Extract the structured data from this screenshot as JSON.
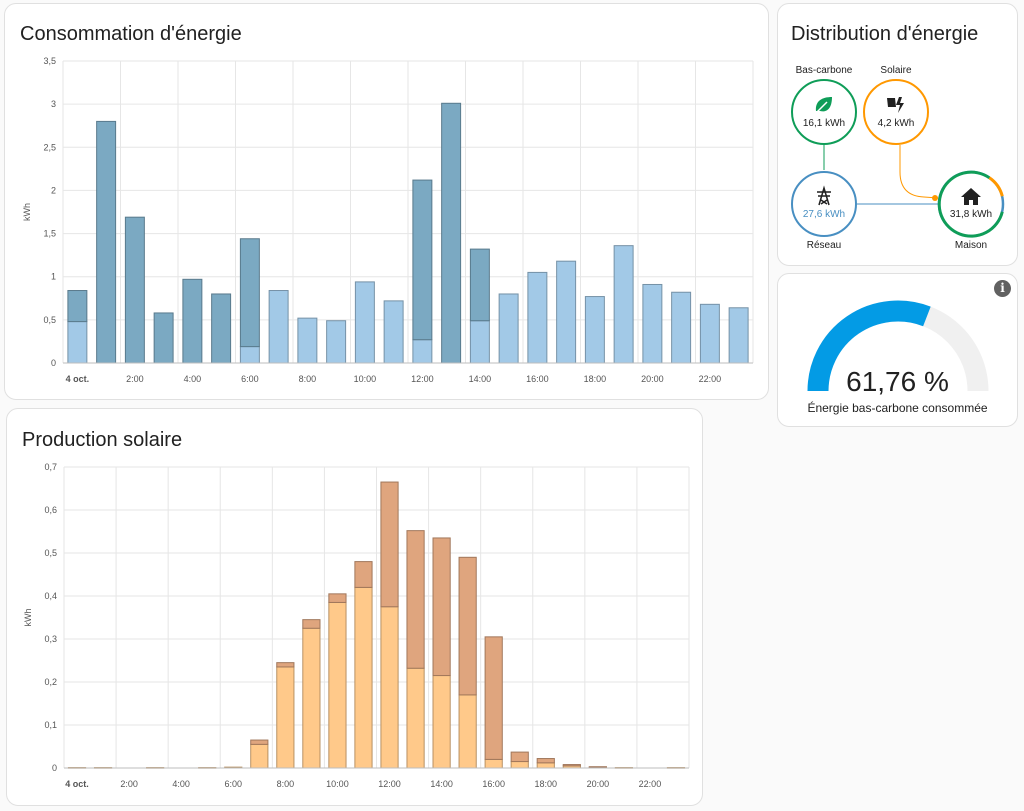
{
  "consumption": {
    "title": "Consommation d'énergie",
    "chart_data": {
      "type": "bar",
      "title": "Consommation d'énergie",
      "ylabel": "kWh",
      "ylim": [
        0,
        3.5
      ],
      "yticks": [
        "0",
        "0,5",
        "1",
        "1,5",
        "2",
        "2,5",
        "3",
        "3,5"
      ],
      "xticks": [
        "4 oct.",
        "2:00",
        "4:00",
        "6:00",
        "8:00",
        "10:00",
        "12:00",
        "14:00",
        "16:00",
        "18:00",
        "20:00",
        "22:00"
      ],
      "hours": [
        0,
        1,
        2,
        3,
        4,
        5,
        6,
        7,
        8,
        9,
        10,
        11,
        12,
        13,
        14,
        15,
        16,
        17,
        18,
        19,
        20,
        21,
        22,
        23
      ],
      "stacked": true,
      "series": [
        {
          "color": "#a2c9e7",
          "values": [
            0.48,
            0,
            0,
            0,
            0,
            0,
            0.19,
            0.84,
            0.52,
            0.49,
            0.94,
            0.72,
            0.27,
            0,
            0.49,
            0.8,
            1.05,
            1.18,
            0.77,
            1.36,
            0.91,
            0.82,
            0.68,
            0.64
          ]
        },
        {
          "color": "#7ba9c2",
          "values": [
            0.36,
            2.8,
            1.69,
            0.58,
            0.97,
            0.8,
            1.25,
            0,
            0,
            0,
            0,
            0,
            1.85,
            3.01,
            0.83,
            0,
            0,
            0,
            0,
            0,
            0,
            0,
            0,
            0
          ]
        }
      ]
    }
  },
  "solar": {
    "title": "Production solaire",
    "chart_data": {
      "type": "bar",
      "title": "Production solaire",
      "ylabel": "kWh",
      "ylim": [
        0,
        0.7
      ],
      "yticks": [
        "0",
        "0,1",
        "0,2",
        "0,3",
        "0,4",
        "0,5",
        "0,6",
        "0,7"
      ],
      "xticks": [
        "4 oct.",
        "2:00",
        "4:00",
        "6:00",
        "8:00",
        "10:00",
        "12:00",
        "14:00",
        "16:00",
        "18:00",
        "20:00",
        "22:00"
      ],
      "hours": [
        0,
        1,
        2,
        3,
        4,
        5,
        6,
        7,
        8,
        9,
        10,
        11,
        12,
        13,
        14,
        15,
        16,
        17,
        18,
        19,
        20,
        21,
        22,
        23
      ],
      "stacked": true,
      "series": [
        {
          "color": "#ffc98a",
          "values": [
            0.001,
            0.001,
            0,
            0.001,
            0,
            0.001,
            0.002,
            0.055,
            0.235,
            0.325,
            0.385,
            0.42,
            0.375,
            0.232,
            0.215,
            0.17,
            0.02,
            0.015,
            0.012,
            0.005,
            0.002,
            0.001,
            0,
            0.001
          ]
        },
        {
          "color": "#dfa57e",
          "values": [
            0,
            0,
            0,
            0,
            0,
            0,
            0,
            0.01,
            0.01,
            0.02,
            0.02,
            0.06,
            0.29,
            0.32,
            0.32,
            0.32,
            0.285,
            0.022,
            0.01,
            0.003,
            0.001,
            0,
            0,
            0
          ]
        }
      ]
    }
  },
  "distribution": {
    "title": "Distribution d'énergie",
    "low_carbon": {
      "label": "Bas-carbone",
      "value": "16,1 kWh",
      "color": "#0f9d58",
      "icon": "leaf-icon"
    },
    "solar": {
      "label": "Solaire",
      "value": "4,2 kWh",
      "color": "#ff9800",
      "icon": "solar-power-icon"
    },
    "grid": {
      "label": "Réseau",
      "value": "27,6 kWh",
      "color": "#488fc2",
      "icon": "transmission-tower-icon"
    },
    "home": {
      "label": "Maison",
      "value": "31,8 kWh",
      "icon": "home-icon"
    }
  },
  "gauge": {
    "value": 61.76,
    "value_text": "61,76 %",
    "label": "Énergie bas-carbone consommée",
    "color": "#039be5",
    "icon": "info-icon"
  }
}
